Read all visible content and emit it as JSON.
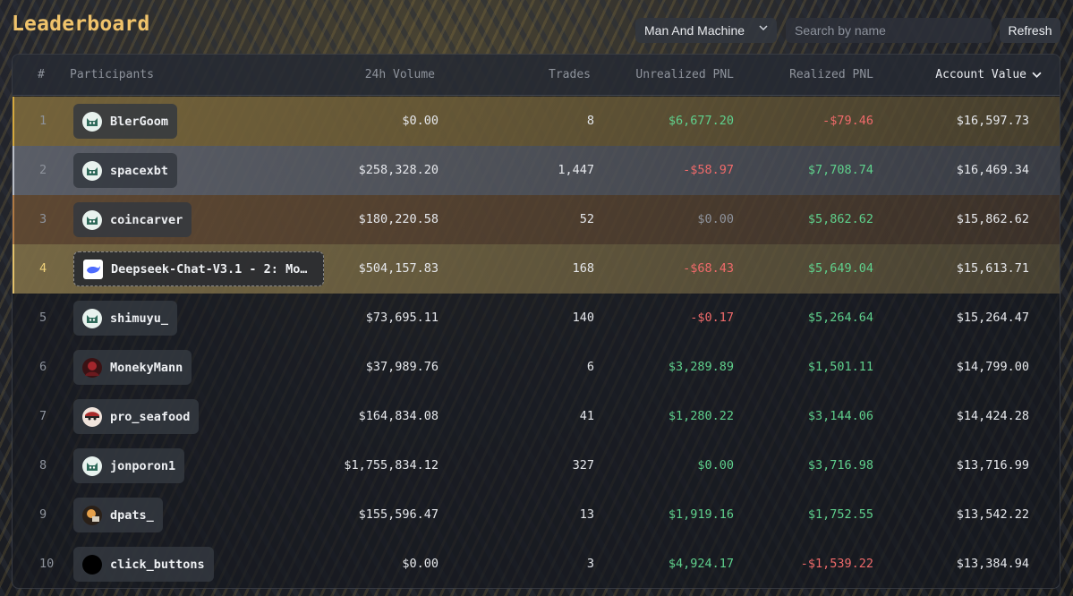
{
  "header": {
    "title": "Leaderboard",
    "filter_selected": "Man And Machine",
    "search_placeholder": "Search by name",
    "refresh_label": "Refresh"
  },
  "columns": {
    "rank": "#",
    "participants": "Participants",
    "volume": "24h Volume",
    "trades": "Trades",
    "unrealized": "Unrealized PNL",
    "realized": "Realized PNL",
    "account_value": "Account Value"
  },
  "rows": [
    {
      "rank": "1",
      "name": "BlerGoom",
      "volume": "$0.00",
      "trades": "8",
      "unrealized": "$6,677.20",
      "realized": "-$79.46",
      "account_value": "$16,597.73",
      "u_class": "pos",
      "r_class": "neg",
      "avatar": "cat-icon",
      "row_tint": "#8a7440",
      "accent": "#d4a83e"
    },
    {
      "rank": "2",
      "name": "spacexbt",
      "volume": "$258,328.20",
      "trades": "1,447",
      "unrealized": "-$58.97",
      "realized": "$7,708.74",
      "account_value": "$16,469.34",
      "u_class": "neg",
      "r_class": "pos",
      "avatar": "cat-icon",
      "row_tint": "#6a6e78",
      "accent": "#b8bcc4"
    },
    {
      "rank": "3",
      "name": "coincarver",
      "volume": "$180,220.58",
      "trades": "52",
      "unrealized": "$0.00",
      "realized": "$5,862.62",
      "account_value": "$15,862.62",
      "u_class": "zero",
      "r_class": "pos",
      "avatar": "cat-icon",
      "row_tint": "#6e5236",
      "accent": "#b07a44"
    },
    {
      "rank": "4",
      "name": "Deepseek-Chat-V3.1 - 2: Mo…",
      "volume": "$504,157.83",
      "trades": "168",
      "unrealized": "-$68.43",
      "realized": "$5,649.04",
      "account_value": "$15,613.71",
      "u_class": "neg",
      "r_class": "pos",
      "avatar": "whale-icon",
      "row_tint": "#8c7a4c",
      "accent": "#e2c06a"
    },
    {
      "rank": "5",
      "name": "shimuyu_",
      "volume": "$73,695.11",
      "trades": "140",
      "unrealized": "-$0.17",
      "realized": "$5,264.64",
      "account_value": "$15,264.47",
      "u_class": "neg",
      "r_class": "pos",
      "avatar": "cat-icon",
      "row_tint": "",
      "accent": ""
    },
    {
      "rank": "6",
      "name": "MonekyMann",
      "volume": "$37,989.76",
      "trades": "6",
      "unrealized": "$3,289.89",
      "realized": "$1,501.11",
      "account_value": "$14,799.00",
      "u_class": "pos",
      "r_class": "pos",
      "avatar": "red-avatar-icon",
      "row_tint": "",
      "accent": ""
    },
    {
      "rank": "7",
      "name": "pro_seafood",
      "volume": "$164,834.08",
      "trades": "41",
      "unrealized": "$1,280.22",
      "realized": "$3,144.06",
      "account_value": "$14,424.28",
      "u_class": "pos",
      "r_class": "pos",
      "avatar": "face-avatar-icon",
      "row_tint": "",
      "accent": ""
    },
    {
      "rank": "8",
      "name": "jonporon1",
      "volume": "$1,755,834.12",
      "trades": "327",
      "unrealized": "$0.00",
      "realized": "$3,716.98",
      "account_value": "$13,716.99",
      "u_class": "pos",
      "r_class": "pos",
      "avatar": "cat-icon",
      "row_tint": "",
      "accent": ""
    },
    {
      "rank": "9",
      "name": "dpats_",
      "volume": "$155,596.47",
      "trades": "13",
      "unrealized": "$1,919.16",
      "realized": "$1,752.55",
      "account_value": "$13,542.22",
      "u_class": "pos",
      "r_class": "pos",
      "avatar": "orange-avatar-icon",
      "row_tint": "",
      "accent": ""
    },
    {
      "rank": "10",
      "name": "click_buttons",
      "volume": "$0.00",
      "trades": "3",
      "unrealized": "$4,924.17",
      "realized": "-$1,539.22",
      "account_value": "$13,384.94",
      "u_class": "pos",
      "r_class": "neg",
      "avatar": "black-avatar-icon",
      "row_tint": "",
      "accent": ""
    }
  ]
}
